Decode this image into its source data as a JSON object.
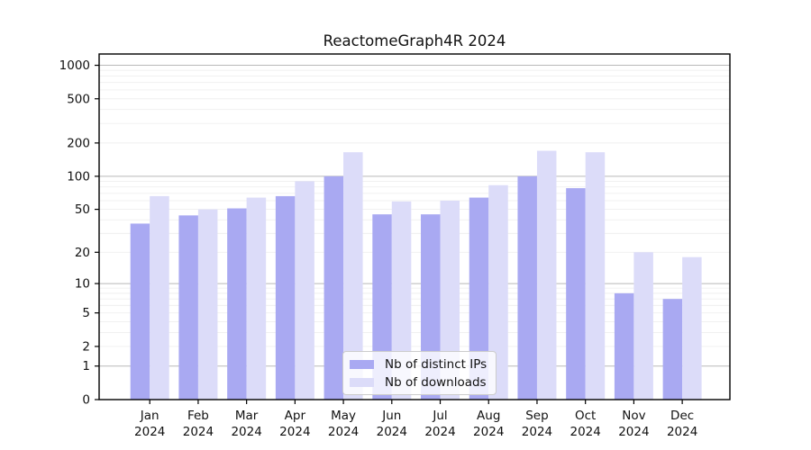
{
  "title": "ReactomeGraph4R 2024",
  "chart_data": {
    "type": "bar",
    "title": "ReactomeGraph4R 2024",
    "categories": [
      "Jan",
      "Feb",
      "Mar",
      "Apr",
      "May",
      "Jun",
      "Jul",
      "Aug",
      "Sep",
      "Oct",
      "Nov",
      "Dec"
    ],
    "year_label": "2024",
    "series": [
      {
        "name": "Nb of distinct IPs",
        "color": "#a9a9f2",
        "values": [
          37,
          44,
          51,
          66,
          100,
          45,
          45,
          64,
          100,
          78,
          8,
          7
        ]
      },
      {
        "name": "Nb of downloads",
        "color": "#dcdcf9",
        "values": [
          66,
          50,
          64,
          90,
          165,
          59,
          60,
          83,
          170,
          165,
          20,
          18
        ]
      }
    ],
    "xlabel": "",
    "ylabel": "",
    "yscale": "log1p",
    "ytick_labels": [
      0,
      1,
      2,
      5,
      10,
      20,
      50,
      100,
      200,
      500,
      1000
    ],
    "ylim": [
      0,
      1100
    ],
    "grid": true,
    "legend_position": "bottom-center",
    "colors": {
      "major_gridline": "#b8b8b8",
      "minor_gridline": "#efefef",
      "axis_frame": "#000000",
      "text": "#111111"
    }
  }
}
